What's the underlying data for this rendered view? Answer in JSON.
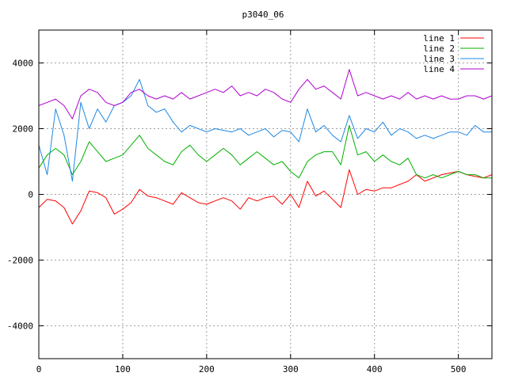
{
  "chart_data": {
    "type": "line",
    "title": "p3040_06",
    "xlabel": "",
    "ylabel": "",
    "xlim": [
      0,
      540
    ],
    "ylim": [
      -5000,
      5000
    ],
    "x_ticks": [
      0,
      100,
      200,
      300,
      400,
      500
    ],
    "y_ticks": [
      -4000,
      -2000,
      0,
      2000,
      4000
    ],
    "grid": true,
    "legend_position": "top-right",
    "series": [
      {
        "name": "line 1",
        "color": "#ff0000",
        "x": [
          0,
          10,
          20,
          30,
          40,
          50,
          60,
          70,
          80,
          90,
          100,
          110,
          120,
          130,
          140,
          150,
          160,
          170,
          180,
          190,
          200,
          210,
          220,
          230,
          240,
          250,
          260,
          270,
          280,
          290,
          300,
          310,
          320,
          330,
          340,
          350,
          360,
          370,
          380,
          390,
          400,
          410,
          420,
          430,
          440,
          450,
          460,
          470,
          480,
          490,
          500,
          510,
          520,
          530,
          540
        ],
        "y": [
          -400,
          -150,
          -200,
          -400,
          -900,
          -500,
          100,
          50,
          -100,
          -600,
          -450,
          -250,
          150,
          -50,
          -100,
          -200,
          -300,
          50,
          -100,
          -250,
          -300,
          -200,
          -100,
          -200,
          -450,
          -100,
          -200,
          -100,
          -50,
          -300,
          0,
          -400,
          400,
          -50,
          100,
          -150,
          -400,
          750,
          0,
          150,
          100,
          200,
          200,
          300,
          400,
          600,
          400,
          500,
          600,
          650,
          700,
          600,
          550,
          500,
          600
        ]
      },
      {
        "name": "line 2",
        "color": "#00b000",
        "x": [
          0,
          10,
          20,
          30,
          40,
          50,
          60,
          70,
          80,
          90,
          100,
          110,
          120,
          130,
          140,
          150,
          160,
          170,
          180,
          190,
          200,
          210,
          220,
          230,
          240,
          250,
          260,
          270,
          280,
          290,
          300,
          310,
          320,
          330,
          340,
          350,
          360,
          370,
          380,
          390,
          400,
          410,
          420,
          430,
          440,
          450,
          460,
          470,
          480,
          490,
          500,
          510,
          520,
          530,
          540
        ],
        "y": [
          800,
          1200,
          1400,
          1200,
          600,
          1000,
          1600,
          1300,
          1000,
          1100,
          1200,
          1500,
          1800,
          1400,
          1200,
          1000,
          900,
          1300,
          1500,
          1200,
          1000,
          1200,
          1400,
          1200,
          900,
          1100,
          1300,
          1100,
          900,
          1000,
          700,
          500,
          1000,
          1200,
          1300,
          1300,
          900,
          2100,
          1200,
          1300,
          1000,
          1200,
          1000,
          900,
          1100,
          600,
          500,
          600,
          500,
          600,
          700,
          600,
          600,
          500,
          500
        ]
      },
      {
        "name": "line 3",
        "color": "#1e88e5",
        "x": [
          0,
          10,
          20,
          30,
          40,
          50,
          60,
          70,
          80,
          90,
          100,
          110,
          120,
          130,
          140,
          150,
          160,
          170,
          180,
          190,
          200,
          210,
          220,
          230,
          240,
          250,
          260,
          270,
          280,
          290,
          300,
          310,
          320,
          330,
          340,
          350,
          360,
          370,
          380,
          390,
          400,
          410,
          420,
          430,
          440,
          450,
          460,
          470,
          480,
          490,
          500,
          510,
          520,
          530,
          540
        ],
        "y": [
          1500,
          600,
          2600,
          1800,
          400,
          2800,
          2000,
          2600,
          2200,
          2700,
          2800,
          3000,
          3500,
          2700,
          2500,
          2600,
          2200,
          1900,
          2100,
          2000,
          1900,
          2000,
          1950,
          1900,
          2000,
          1800,
          1900,
          2000,
          1750,
          1950,
          1900,
          1600,
          2600,
          1900,
          2100,
          1800,
          1600,
          2400,
          1700,
          2000,
          1900,
          2200,
          1800,
          2000,
          1900,
          1700,
          1800,
          1700,
          1800,
          1900,
          1900,
          1800,
          2100,
          1900,
          1900
        ]
      },
      {
        "name": "line 4",
        "color": "#b000d0",
        "x": [
          0,
          10,
          20,
          30,
          40,
          50,
          60,
          70,
          80,
          90,
          100,
          110,
          120,
          130,
          140,
          150,
          160,
          170,
          180,
          190,
          200,
          210,
          220,
          230,
          240,
          250,
          260,
          270,
          280,
          290,
          300,
          310,
          320,
          330,
          340,
          350,
          360,
          370,
          380,
          390,
          400,
          410,
          420,
          430,
          440,
          450,
          460,
          470,
          480,
          490,
          500,
          510,
          520,
          530,
          540
        ],
        "y": [
          2700,
          2800,
          2900,
          2700,
          2300,
          3000,
          3200,
          3100,
          2800,
          2700,
          2800,
          3100,
          3200,
          3000,
          2900,
          3000,
          2900,
          3100,
          2900,
          3000,
          3100,
          3200,
          3100,
          3300,
          3000,
          3100,
          3000,
          3200,
          3100,
          2900,
          2800,
          3200,
          3500,
          3200,
          3300,
          3100,
          2900,
          3800,
          3000,
          3100,
          3000,
          2900,
          3000,
          2900,
          3100,
          2900,
          3000,
          2900,
          3000,
          2900,
          2900,
          3000,
          3000,
          2900,
          3000
        ]
      }
    ]
  }
}
